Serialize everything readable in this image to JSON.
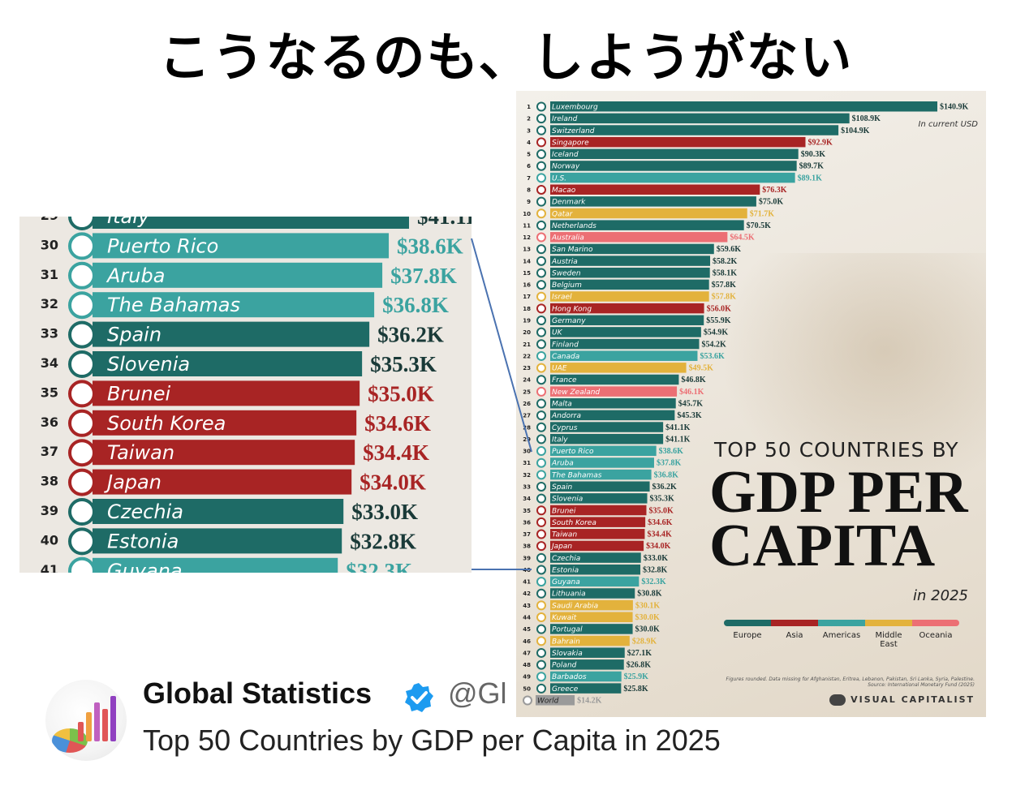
{
  "slide_title": "こうなるのも、しようがない",
  "tweet": {
    "name": "Global Statistics",
    "handle": "@Gl",
    "text": "Top 50 Countries by GDP per Capita in 2025"
  },
  "colors": {
    "Europe": "#1e6b66",
    "Asia": "#a82424",
    "Americas": "#3ba3a0",
    "Middle East": "#e3b23c",
    "Oceania": "#ec6f74",
    "World": "#9a9a9a"
  },
  "chart_data": {
    "type": "bar",
    "orientation": "horizontal",
    "title": "TOP 50 COUNTRIES BY",
    "title_main": "GDP PER CAPITA",
    "subtitle": "in 2025",
    "unit_note": "In current USD",
    "legend": [
      "Europe",
      "Asia",
      "Americas",
      "Middle East",
      "Oceania"
    ],
    "legend_labels": [
      "Europe",
      "Asia",
      "Americas",
      "Middle\nEast",
      "Oceania"
    ],
    "note": "Figures rounded. Data missing for Afghanistan, Eritrea, Lebanon, Pakistan, Sri Lanka, Syria, Palestine.",
    "source": "Source: International Monetary Fund (2025)",
    "logo": "VISUAL CAPITALIST",
    "xlim": [
      0,
      140.9
    ],
    "rows": [
      {
        "rank": "1",
        "country": "Luxembourg",
        "value": 140.9,
        "label": "$140.9K",
        "region": "Europe"
      },
      {
        "rank": "2",
        "country": "Ireland",
        "value": 108.9,
        "label": "$108.9K",
        "region": "Europe"
      },
      {
        "rank": "3",
        "country": "Switzerland",
        "value": 104.9,
        "label": "$104.9K",
        "region": "Europe"
      },
      {
        "rank": "4",
        "country": "Singapore",
        "value": 92.9,
        "label": "$92.9K",
        "region": "Asia"
      },
      {
        "rank": "5",
        "country": "Iceland",
        "value": 90.3,
        "label": "$90.3K",
        "region": "Europe"
      },
      {
        "rank": "6",
        "country": "Norway",
        "value": 89.7,
        "label": "$89.7K",
        "region": "Europe"
      },
      {
        "rank": "7",
        "country": "U.S.",
        "value": 89.1,
        "label": "$89.1K",
        "region": "Americas"
      },
      {
        "rank": "8",
        "country": "Macao",
        "value": 76.3,
        "label": "$76.3K",
        "region": "Asia"
      },
      {
        "rank": "9",
        "country": "Denmark",
        "value": 75.0,
        "label": "$75.0K",
        "region": "Europe"
      },
      {
        "rank": "10",
        "country": "Qatar",
        "value": 71.7,
        "label": "$71.7K",
        "region": "Middle East"
      },
      {
        "rank": "11",
        "country": "Netherlands",
        "value": 70.5,
        "label": "$70.5K",
        "region": "Europe"
      },
      {
        "rank": "12",
        "country": "Australia",
        "value": 64.5,
        "label": "$64.5K",
        "region": "Oceania"
      },
      {
        "rank": "13",
        "country": "San Marino",
        "value": 59.6,
        "label": "$59.6K",
        "region": "Europe"
      },
      {
        "rank": "14",
        "country": "Austria",
        "value": 58.2,
        "label": "$58.2K",
        "region": "Europe"
      },
      {
        "rank": "15",
        "country": "Sweden",
        "value": 58.1,
        "label": "$58.1K",
        "region": "Europe"
      },
      {
        "rank": "16",
        "country": "Belgium",
        "value": 57.8,
        "label": "$57.8K",
        "region": "Europe"
      },
      {
        "rank": "17",
        "country": "Israel",
        "value": 57.8,
        "label": "$57.8K",
        "region": "Middle East"
      },
      {
        "rank": "18",
        "country": "Hong Kong",
        "value": 56.0,
        "label": "$56.0K",
        "region": "Asia"
      },
      {
        "rank": "19",
        "country": "Germany",
        "value": 55.9,
        "label": "$55.9K",
        "region": "Europe"
      },
      {
        "rank": "20",
        "country": "UK",
        "value": 54.9,
        "label": "$54.9K",
        "region": "Europe"
      },
      {
        "rank": "21",
        "country": "Finland",
        "value": 54.2,
        "label": "$54.2K",
        "region": "Europe"
      },
      {
        "rank": "22",
        "country": "Canada",
        "value": 53.6,
        "label": "$53.6K",
        "region": "Americas"
      },
      {
        "rank": "23",
        "country": "UAE",
        "value": 49.5,
        "label": "$49.5K",
        "region": "Middle East"
      },
      {
        "rank": "24",
        "country": "France",
        "value": 46.8,
        "label": "$46.8K",
        "region": "Europe"
      },
      {
        "rank": "25",
        "country": "New Zealand",
        "value": 46.1,
        "label": "$46.1K",
        "region": "Oceania"
      },
      {
        "rank": "26",
        "country": "Malta",
        "value": 45.7,
        "label": "$45.7K",
        "region": "Europe"
      },
      {
        "rank": "27",
        "country": "Andorra",
        "value": 45.3,
        "label": "$45.3K",
        "region": "Europe"
      },
      {
        "rank": "28",
        "country": "Cyprus",
        "value": 41.1,
        "label": "$41.1K",
        "region": "Europe"
      },
      {
        "rank": "29",
        "country": "Italy",
        "value": 41.1,
        "label": "$41.1K",
        "region": "Europe"
      },
      {
        "rank": "30",
        "country": "Puerto Rico",
        "value": 38.6,
        "label": "$38.6K",
        "region": "Americas"
      },
      {
        "rank": "31",
        "country": "Aruba",
        "value": 37.8,
        "label": "$37.8K",
        "region": "Americas"
      },
      {
        "rank": "32",
        "country": "The Bahamas",
        "value": 36.8,
        "label": "$36.8K",
        "region": "Americas"
      },
      {
        "rank": "33",
        "country": "Spain",
        "value": 36.2,
        "label": "$36.2K",
        "region": "Europe"
      },
      {
        "rank": "34",
        "country": "Slovenia",
        "value": 35.3,
        "label": "$35.3K",
        "region": "Europe"
      },
      {
        "rank": "35",
        "country": "Brunei",
        "value": 35.0,
        "label": "$35.0K",
        "region": "Asia"
      },
      {
        "rank": "36",
        "country": "South Korea",
        "value": 34.6,
        "label": "$34.6K",
        "region": "Asia"
      },
      {
        "rank": "37",
        "country": "Taiwan",
        "value": 34.4,
        "label": "$34.4K",
        "region": "Asia"
      },
      {
        "rank": "38",
        "country": "Japan",
        "value": 34.0,
        "label": "$34.0K",
        "region": "Asia"
      },
      {
        "rank": "39",
        "country": "Czechia",
        "value": 33.0,
        "label": "$33.0K",
        "region": "Europe"
      },
      {
        "rank": "40",
        "country": "Estonia",
        "value": 32.8,
        "label": "$32.8K",
        "region": "Europe"
      },
      {
        "rank": "41",
        "country": "Guyana",
        "value": 32.3,
        "label": "$32.3K",
        "region": "Americas"
      },
      {
        "rank": "42",
        "country": "Lithuania",
        "value": 30.8,
        "label": "$30.8K",
        "region": "Europe"
      },
      {
        "rank": "43",
        "country": "Saudi Arabia",
        "value": 30.1,
        "label": "$30.1K",
        "region": "Middle East"
      },
      {
        "rank": "44",
        "country": "Kuwait",
        "value": 30.0,
        "label": "$30.0K",
        "region": "Middle East"
      },
      {
        "rank": "45",
        "country": "Portugal",
        "value": 30.0,
        "label": "$30.0K",
        "region": "Europe"
      },
      {
        "rank": "46",
        "country": "Bahrain",
        "value": 28.9,
        "label": "$28.9K",
        "region": "Middle East"
      },
      {
        "rank": "47",
        "country": "Slovakia",
        "value": 27.1,
        "label": "$27.1K",
        "region": "Europe"
      },
      {
        "rank": "48",
        "country": "Poland",
        "value": 26.8,
        "label": "$26.8K",
        "region": "Europe"
      },
      {
        "rank": "49",
        "country": "Barbados",
        "value": 25.9,
        "label": "$25.9K",
        "region": "Americas"
      },
      {
        "rank": "50",
        "country": "Greece",
        "value": 25.8,
        "label": "$25.8K",
        "region": "Europe"
      },
      {
        "rank": "",
        "country": "World",
        "value": 14.2,
        "label": "$14.2K",
        "region": "World"
      }
    ],
    "zoom_rows": [
      {
        "rank": "29",
        "country": "Italy",
        "value": 41.1,
        "label": "$41.1K",
        "region": "Europe"
      },
      {
        "rank": "30",
        "country": "Puerto Rico",
        "value": 38.6,
        "label": "$38.6K",
        "region": "Americas"
      },
      {
        "rank": "31",
        "country": "Aruba",
        "value": 37.8,
        "label": "$37.8K",
        "region": "Americas"
      },
      {
        "rank": "32",
        "country": "The Bahamas",
        "value": 36.8,
        "label": "$36.8K",
        "region": "Americas"
      },
      {
        "rank": "33",
        "country": "Spain",
        "value": 36.2,
        "label": "$36.2K",
        "region": "Europe"
      },
      {
        "rank": "34",
        "country": "Slovenia",
        "value": 35.3,
        "label": "$35.3K",
        "region": "Europe"
      },
      {
        "rank": "35",
        "country": "Brunei",
        "value": 35.0,
        "label": "$35.0K",
        "region": "Asia"
      },
      {
        "rank": "36",
        "country": "South Korea",
        "value": 34.6,
        "label": "$34.6K",
        "region": "Asia"
      },
      {
        "rank": "37",
        "country": "Taiwan",
        "value": 34.4,
        "label": "$34.4K",
        "region": "Asia"
      },
      {
        "rank": "38",
        "country": "Japan",
        "value": 34.0,
        "label": "$34.0K",
        "region": "Asia"
      },
      {
        "rank": "39",
        "country": "Czechia",
        "value": 33.0,
        "label": "$33.0K",
        "region": "Europe"
      },
      {
        "rank": "40",
        "country": "Estonia",
        "value": 32.8,
        "label": "$32.8K",
        "region": "Europe"
      },
      {
        "rank": "41",
        "country": "Guyana",
        "value": 32.3,
        "label": "$32.3K",
        "region": "Americas"
      }
    ]
  }
}
